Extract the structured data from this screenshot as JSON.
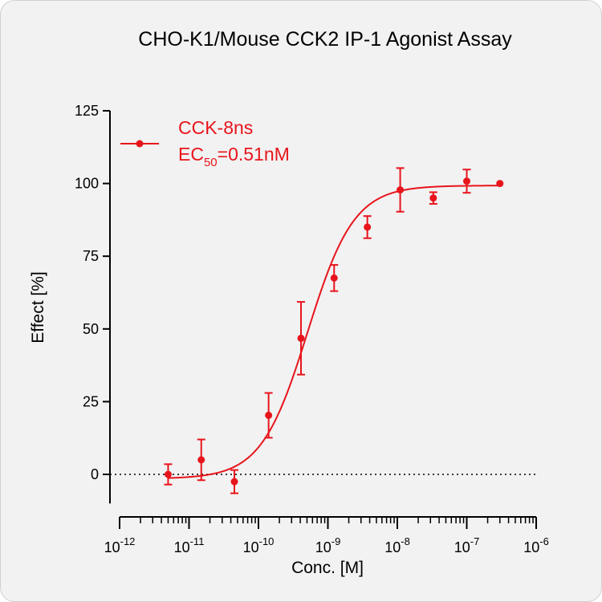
{
  "chart_data": {
    "type": "scatter",
    "title": "CHO-K1/Mouse CCK2 IP-1 Agonist Assay",
    "xlabel": "Conc. [M]",
    "ylabel": "Effect  [%]",
    "x_scale": "log",
    "x_range": [
      1e-12,
      1e-06
    ],
    "ylim": [
      -10,
      125
    ],
    "y_ticks": [
      0,
      25,
      50,
      75,
      100,
      125
    ],
    "x_ticks": [
      {
        "base": "10",
        "exp": "-12"
      },
      {
        "base": "10",
        "exp": "-11"
      },
      {
        "base": "10",
        "exp": "-10"
      },
      {
        "base": "10",
        "exp": "-9"
      },
      {
        "base": "10",
        "exp": "-8"
      },
      {
        "base": "10",
        "exp": "-7"
      },
      {
        "base": "10",
        "exp": "-6"
      }
    ],
    "grid": false,
    "zero_line": "dotted",
    "legend": {
      "placement": "top-left"
    },
    "colors": {
      "series": "#e8141b"
    },
    "series": [
      {
        "name": "CCK-8ns",
        "ec50_prefix": "EC",
        "ec50_sub": "50",
        "ec50_value": "=0.51nM",
        "fit": {
          "bottom": -1.5,
          "top": 99.3,
          "ec50": 5.1e-10,
          "hill": 1.3
        },
        "points": [
          {
            "x": 5e-12,
            "y": 0.0,
            "err": 3.5
          },
          {
            "x": 1.5e-11,
            "y": 5.0,
            "err": 7.0
          },
          {
            "x": 4.5e-11,
            "y": -2.5,
            "err": 4.0
          },
          {
            "x": 1.4e-10,
            "y": 20.3,
            "err": 7.7
          },
          {
            "x": 4.1e-10,
            "y": 46.8,
            "err": 12.5
          },
          {
            "x": 1.23e-09,
            "y": 67.5,
            "err": 4.5
          },
          {
            "x": 3.7e-09,
            "y": 85.0,
            "err": 3.8
          },
          {
            "x": 1.1e-08,
            "y": 97.8,
            "err": 7.5
          },
          {
            "x": 3.3e-08,
            "y": 95.0,
            "err": 2.0
          },
          {
            "x": 1e-07,
            "y": 100.8,
            "err": 4.0
          },
          {
            "x": 3e-07,
            "y": 100.0,
            "err": 0
          }
        ]
      }
    ]
  }
}
